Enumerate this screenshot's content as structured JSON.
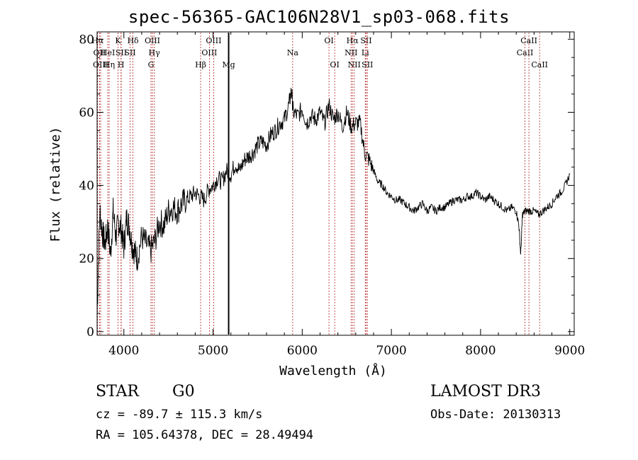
{
  "chart_data": {
    "type": "line",
    "title": "spec-56365-GAC106N28V1_sp03-068.fits",
    "xlabel": "Wavelength (Å)",
    "ylabel": "Flux (relative)",
    "xlim": [
      3700,
      9050
    ],
    "ylim": [
      -1,
      82
    ],
    "xticks": [
      4000,
      5000,
      6000,
      7000,
      8000,
      9000
    ],
    "yticks": [
      0,
      20,
      40,
      60,
      80
    ],
    "series": [
      {
        "name": "flux",
        "x": [
          3700,
          3730,
          3760,
          3790,
          3820,
          3850,
          3880,
          3910,
          3940,
          3970,
          4000,
          4030,
          4060,
          4090,
          4120,
          4150,
          4200,
          4250,
          4300,
          4350,
          4400,
          4450,
          4500,
          4550,
          4600,
          4650,
          4700,
          4750,
          4800,
          4850,
          4900,
          4950,
          5000,
          5050,
          5100,
          5150,
          5200,
          5250,
          5300,
          5350,
          5400,
          5450,
          5500,
          5550,
          5600,
          5650,
          5700,
          5750,
          5800,
          5850,
          5880,
          5900,
          5950,
          6000,
          6050,
          6100,
          6150,
          6200,
          6250,
          6300,
          6350,
          6400,
          6450,
          6500,
          6550,
          6600,
          6650,
          6700,
          6750,
          6800,
          6850,
          6900,
          6950,
          7000,
          7050,
          7100,
          7150,
          7200,
          7250,
          7300,
          7350,
          7400,
          7450,
          7500,
          7550,
          7600,
          7650,
          7700,
          7750,
          7800,
          7850,
          7900,
          7950,
          8000,
          8050,
          8100,
          8150,
          8200,
          8250,
          8300,
          8350,
          8400,
          8430,
          8450,
          8470,
          8500,
          8550,
          8600,
          8650,
          8700,
          8750,
          8800,
          8850,
          8900,
          8950,
          9000
        ],
        "values": [
          5,
          33,
          27,
          24,
          29,
          21,
          33,
          26,
          30,
          28,
          23,
          31,
          29,
          24,
          22,
          20,
          26,
          24,
          22,
          25,
          30,
          29,
          33,
          34,
          33,
          35,
          36,
          37,
          38,
          37,
          36,
          39,
          40,
          42,
          41,
          44,
          43,
          46,
          44,
          47,
          48,
          49,
          51,
          52,
          51,
          54,
          55,
          57,
          58,
          62,
          66,
          60,
          59,
          61,
          57,
          59,
          58,
          60,
          57,
          62,
          58,
          60,
          56,
          60,
          56,
          57,
          57,
          49,
          47,
          44,
          41,
          40,
          38,
          37,
          36,
          36,
          35,
          34,
          33,
          34,
          35,
          33,
          34,
          33,
          34,
          34,
          35,
          36,
          36,
          36,
          37,
          37,
          38,
          37,
          36,
          37,
          36,
          35,
          34,
          33,
          34,
          33,
          29,
          21,
          32,
          33,
          33,
          33,
          32,
          33,
          34,
          35,
          37,
          38,
          40,
          43
        ]
      }
    ],
    "lines": [
      {
        "label": "Hα",
        "wl": 3705,
        "row": 0
      },
      {
        "label": "OII",
        "wl": 3727,
        "row": 1
      },
      {
        "label": "OIII",
        "wl": 3740,
        "row": 2
      },
      {
        "label": "HeI",
        "wl": 3820,
        "row": 1
      },
      {
        "label": "Hη",
        "wl": 3835,
        "row": 2
      },
      {
        "label": "K",
        "wl": 3934,
        "row": 0
      },
      {
        "label": "SII",
        "wl": 3970,
        "row": 1
      },
      {
        "label": "H",
        "wl": 3968,
        "row": 2
      },
      {
        "label": "Hδ",
        "wl": 4102,
        "row": 0
      },
      {
        "label": "SII",
        "wl": 4070,
        "row": 1
      },
      {
        "label": "OIII",
        "wl": 4320,
        "row": 0
      },
      {
        "label": "Hγ",
        "wl": 4341,
        "row": 1
      },
      {
        "label": "G",
        "wl": 4304,
        "row": 2
      },
      {
        "label": "Hβ",
        "wl": 4861,
        "row": 2
      },
      {
        "label": "OIII",
        "wl": 4959,
        "row": 1
      },
      {
        "label": "OIII",
        "wl": 5007,
        "row": 0
      },
      {
        "label": "Mg",
        "wl": 5175,
        "row": 2
      },
      {
        "label": "Na",
        "wl": 5893,
        "row": 1
      },
      {
        "label": "OI",
        "wl": 6300,
        "row": 0
      },
      {
        "label": "OI",
        "wl": 6364,
        "row": 2
      },
      {
        "label": "Hα",
        "wl": 6563,
        "row": 0
      },
      {
        "label": "NII",
        "wl": 6548,
        "row": 1
      },
      {
        "label": "NII",
        "wl": 6583,
        "row": 2
      },
      {
        "label": "SII",
        "wl": 6717,
        "row": 0
      },
      {
        "label": "Li",
        "wl": 6707,
        "row": 1
      },
      {
        "label": "SII",
        "wl": 6731,
        "row": 2
      },
      {
        "label": "CaII",
        "wl": 8498,
        "row": 1
      },
      {
        "label": "CaII",
        "wl": 8542,
        "row": 0
      },
      {
        "label": "CaII",
        "wl": 8662,
        "row": 2
      }
    ]
  },
  "info": {
    "class": "STAR",
    "subclass": "G0",
    "survey": "LAMOST DR3",
    "cz": "cz = -89.7 ± 115.3 km/s",
    "obs_date": "Obs-Date: 20130313",
    "radec": "RA = 105.64378, DEC =  28.49494"
  }
}
